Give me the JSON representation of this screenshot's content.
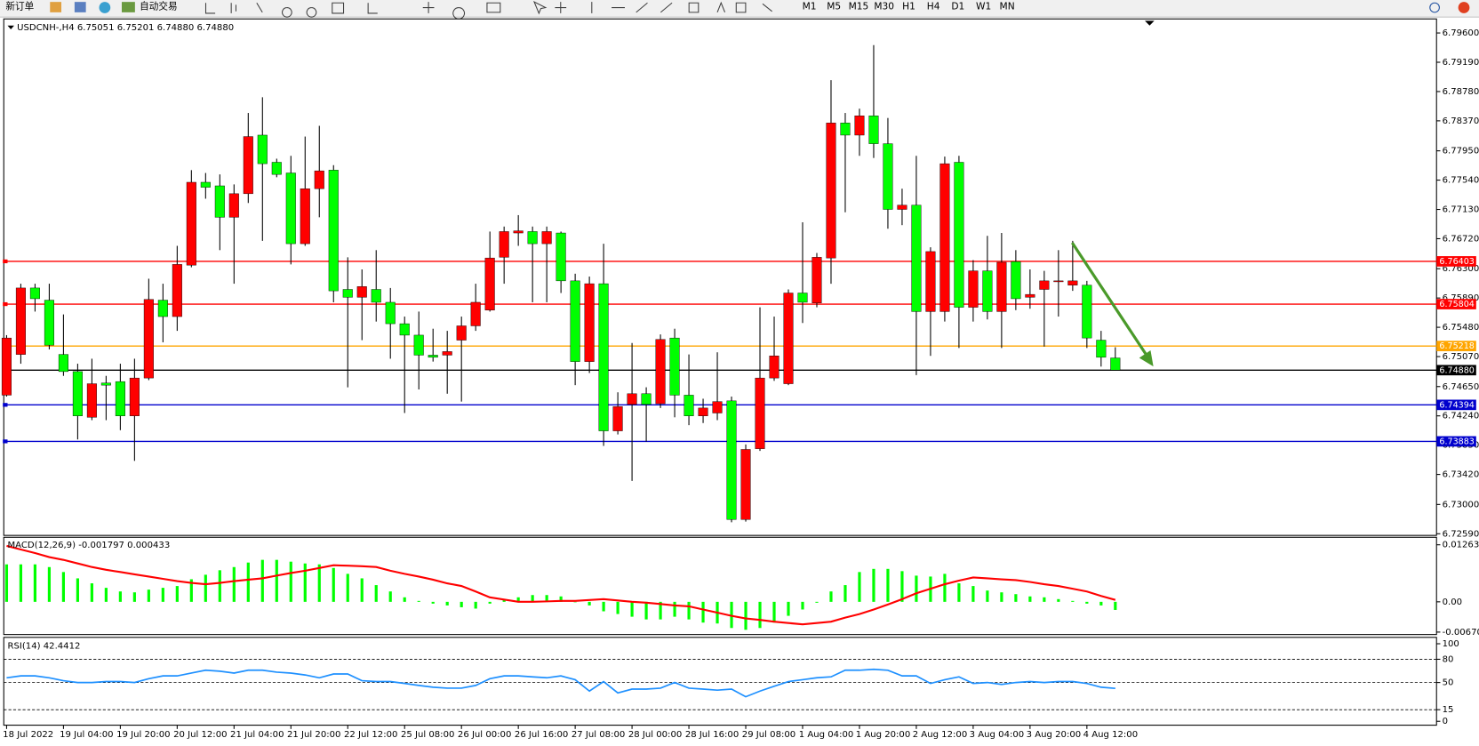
{
  "toolbar": {
    "new_order": "新订单",
    "auto_trade": "自动交易",
    "timeframes": [
      "M1",
      "M5",
      "M15",
      "M30",
      "H1",
      "H4",
      "D1",
      "W1",
      "MN"
    ]
  },
  "chart_data": [
    {
      "type": "candlestick",
      "title": "USDCNH-,H4 6.75051 6.75201 6.74880 6.74880",
      "up_color": "#ff0000",
      "down_color": "#00ff00",
      "categories": [
        "18 Jul 2022",
        null,
        null,
        null,
        "19 Jul 04:00",
        null,
        null,
        null,
        "19 Jul 20:00",
        null,
        null,
        null,
        "20 Jul 12:00",
        null,
        null,
        null,
        "21 Jul 04:00",
        null,
        null,
        null,
        "21 Jul 20:00",
        null,
        null,
        null,
        "22 Jul 12:00",
        null,
        null,
        null,
        "25 Jul 08:00",
        null,
        null,
        null,
        "26 Jul 00:00",
        null,
        null,
        null,
        "26 Jul 16:00",
        null,
        null,
        null,
        "27 Jul 08:00",
        null,
        null,
        null,
        "28 Jul 00:00",
        null,
        null,
        null,
        "28 Jul 16:00",
        null,
        null,
        null,
        "29 Jul 08:00",
        null,
        null,
        null,
        "1 Aug 04:00",
        null,
        null,
        null,
        "1 Aug 20:00",
        null,
        null,
        null,
        "2 Aug 12:00",
        null,
        null,
        null,
        "3 Aug 04:00",
        null,
        null,
        null,
        "3 Aug 20:00",
        null,
        null,
        null,
        "4 Aug 12:00",
        null,
        null
      ],
      "open": [
        6.7453,
        6.751,
        6.7603,
        6.7586,
        6.751,
        6.7486,
        6.7422,
        6.747,
        6.7472,
        6.7424,
        6.7477,
        6.7586,
        6.7563,
        6.7635,
        6.7751,
        6.7746,
        6.7702,
        6.7735,
        6.7817,
        6.7779,
        6.7764,
        6.7665,
        6.7742,
        6.7768,
        6.7601,
        6.759,
        6.7601,
        6.7583,
        6.7553,
        6.7537,
        6.7509,
        6.7509,
        6.753,
        6.755,
        6.7572,
        6.7646,
        6.768,
        6.7682,
        6.7665,
        6.768,
        6.7613,
        6.75,
        6.7609,
        6.7403,
        6.744,
        6.7455,
        6.7441,
        6.7533,
        6.7453,
        6.7424,
        6.7428,
        6.7445,
        6.7279,
        6.7378,
        6.7477,
        6.7469,
        6.7596,
        6.7582,
        6.7645,
        6.7834,
        6.7817,
        6.7844,
        6.7805,
        6.7713,
        6.7719,
        6.757,
        6.757,
        6.7779,
        6.7576,
        6.7627,
        6.757,
        6.764,
        6.759,
        6.7601,
        6.7612,
        6.7607,
        6.7607,
        6.753,
        6.75051
      ],
      "high": [
        6.7537,
        6.7609,
        6.7609,
        6.7609,
        6.7566,
        6.7497,
        6.7504,
        6.748,
        6.7497,
        6.7504,
        6.7616,
        6.7609,
        6.7662,
        6.7768,
        6.7764,
        6.7762,
        6.7748,
        6.7848,
        6.787,
        6.7784,
        6.7788,
        6.7815,
        6.783,
        6.7775,
        6.7646,
        6.7629,
        6.7656,
        6.7603,
        6.7563,
        6.757,
        6.7546,
        6.7543,
        6.7563,
        6.7609,
        6.7682,
        6.7689,
        6.7705,
        6.7689,
        6.7689,
        6.7682,
        6.7623,
        6.7619,
        6.7665,
        6.7457,
        6.7526,
        6.7464,
        6.7538,
        6.7546,
        6.751,
        6.7448,
        6.7513,
        6.7451,
        6.7384,
        6.7576,
        6.7563,
        6.7601,
        6.7695,
        6.7652,
        6.7894,
        6.7848,
        6.7854,
        6.7943,
        6.7841,
        6.7742,
        6.7788,
        6.766,
        6.7787,
        6.7788,
        6.7642,
        6.7676,
        6.768,
        6.7656,
        6.7629,
        6.7627,
        6.7656,
        6.7669,
        6.7613,
        6.7543,
        6.75201
      ],
      "low": [
        6.7451,
        6.7497,
        6.757,
        6.7517,
        6.748,
        6.7391,
        6.7418,
        6.7418,
        6.7404,
        6.7361,
        6.7474,
        6.7527,
        6.7543,
        6.7632,
        6.7728,
        6.7656,
        6.7609,
        6.7722,
        6.7669,
        6.7758,
        6.7636,
        6.7662,
        6.7702,
        6.7583,
        6.7464,
        6.753,
        6.7556,
        6.7504,
        6.7428,
        6.7461,
        6.75,
        6.7455,
        6.7444,
        6.7543,
        6.757,
        6.7609,
        6.7662,
        6.7583,
        6.7583,
        6.7596,
        6.7467,
        6.7484,
        6.7382,
        6.7398,
        6.7333,
        6.7388,
        6.7435,
        6.7422,
        6.7411,
        6.7414,
        6.7418,
        6.7275,
        6.7276,
        6.7375,
        6.7473,
        6.7467,
        6.7554,
        6.7576,
        6.7609,
        6.7709,
        6.7788,
        6.7785,
        6.7686,
        6.7691,
        6.7481,
        6.7508,
        6.7556,
        6.7519,
        6.7556,
        6.7559,
        6.7519,
        6.7572,
        6.7574,
        6.7521,
        6.7563,
        6.7599,
        6.7519,
        6.7493,
        6.7488
      ],
      "close": [
        6.7533,
        6.7603,
        6.7588,
        6.7523,
        6.7486,
        6.7424,
        6.7469,
        6.7467,
        6.7424,
        6.7477,
        6.7587,
        6.7563,
        6.7636,
        6.7751,
        6.7744,
        6.7702,
        6.7735,
        6.7815,
        6.7777,
        6.7762,
        6.7665,
        6.7742,
        6.7767,
        6.7599,
        6.759,
        6.7605,
        6.7583,
        6.7553,
        6.7537,
        6.7509,
        6.7506,
        6.7514,
        6.755,
        6.7583,
        6.7645,
        6.7682,
        6.7683,
        6.7665,
        6.7682,
        6.7613,
        6.75,
        6.7609,
        6.7403,
        6.7437,
        6.7455,
        6.744,
        6.7531,
        6.7453,
        6.7424,
        6.7435,
        6.7444,
        6.7279,
        6.7377,
        6.7477,
        6.7508,
        6.7596,
        6.7583,
        6.7646,
        6.7834,
        6.7817,
        6.7844,
        6.7805,
        6.7713,
        6.7719,
        6.757,
        6.7654,
        6.7777,
        6.7576,
        6.7627,
        6.757,
        6.7639,
        6.7588,
        6.7594,
        6.7613,
        6.7613,
        6.7613,
        6.7533,
        6.7506,
        6.7488
      ],
      "ylim": [
        6.7258,
        6.7977
      ],
      "yticks": [
        {
          "value": 6.796,
          "label": "6.79600"
        },
        {
          "value": 6.7919,
          "label": "6.79190"
        },
        {
          "value": 6.7878,
          "label": "6.78780"
        },
        {
          "value": 6.7837,
          "label": "6.78370"
        },
        {
          "value": 6.7795,
          "label": "6.77950"
        },
        {
          "value": 6.7754,
          "label": "6.77540"
        },
        {
          "value": 6.7713,
          "label": "6.77130"
        },
        {
          "value": 6.7672,
          "label": "6.76720"
        },
        {
          "value": 6.763,
          "label": "6.76300"
        },
        {
          "value": 6.7589,
          "label": "6.75890"
        },
        {
          "value": 6.7548,
          "label": "6.75480"
        },
        {
          "value": 6.7507,
          "label": "6.75070"
        },
        {
          "value": 6.7465,
          "label": "6.74650"
        },
        {
          "value": 6.7424,
          "label": "6.74240"
        },
        {
          "value": 6.7383,
          "label": "6.73830"
        },
        {
          "value": 6.7342,
          "label": "6.73420"
        },
        {
          "value": 6.73,
          "label": "6.73000"
        },
        {
          "value": 6.7259,
          "label": "6.72590"
        }
      ],
      "levels": [
        {
          "value": 6.76403,
          "label": "6.76403",
          "color": "#ff0000"
        },
        {
          "value": 6.75804,
          "label": "6.75804",
          "color": "#ff0000"
        },
        {
          "value": 6.75218,
          "label": "6.75218",
          "color": "#ffa500"
        },
        {
          "value": 6.7488,
          "label": "6.74880",
          "color": "#000000"
        },
        {
          "value": 6.74394,
          "label": "6.74394",
          "color": "#0000cd"
        },
        {
          "value": 6.73883,
          "label": "6.73883",
          "color": "#0000cd"
        }
      ]
    },
    {
      "type": "macd",
      "title": "MACD(12,26,9) -0.001797 0.000433",
      "histogram": {
        "color": "#00ff00",
        "values": [
          0.0083,
          0.0083,
          0.0083,
          0.0077,
          0.0066,
          0.0052,
          0.0041,
          0.0031,
          0.0023,
          0.0021,
          0.0027,
          0.0031,
          0.0035,
          0.005,
          0.006,
          0.007,
          0.0077,
          0.0087,
          0.0093,
          0.0093,
          0.0089,
          0.0085,
          0.0083,
          0.0075,
          0.0062,
          0.0052,
          0.0037,
          0.0023,
          0.001,
          0.0002,
          -0.0004,
          -0.0008,
          -0.0012,
          -0.0015,
          -0.0004,
          0.0004,
          0.001,
          0.0015,
          0.0015,
          0.0012,
          -0.0001,
          -0.0008,
          -0.0021,
          -0.0027,
          -0.0033,
          -0.0039,
          -0.0039,
          -0.0033,
          -0.0039,
          -0.0046,
          -0.0048,
          -0.0058,
          -0.0062,
          -0.0058,
          -0.0046,
          -0.0031,
          -0.0017,
          -0.0002,
          0.0023,
          0.0037,
          0.0066,
          0.0073,
          0.0073,
          0.0068,
          0.0058,
          0.0056,
          0.0062,
          0.0041,
          0.0035,
          0.0025,
          0.0021,
          0.0017,
          0.0012,
          0.001,
          0.0006,
          0.0002,
          -0.0004,
          -0.0008,
          -0.001797
        ]
      },
      "signal": {
        "color": "#ff0000",
        "values": [
          0.0124,
          0.0116,
          0.0108,
          0.0099,
          0.0093,
          0.0085,
          0.0077,
          0.0071,
          0.0066,
          0.0061,
          0.0056,
          0.0051,
          0.0046,
          0.0042,
          0.0039,
          0.0042,
          0.0046,
          0.0049,
          0.0052,
          0.0058,
          0.0064,
          0.0069,
          0.0075,
          0.0081,
          0.008,
          0.0079,
          0.0077,
          0.0069,
          0.0062,
          0.0056,
          0.0049,
          0.0041,
          0.0035,
          0.0023,
          0.001,
          0.0005,
          0.0,
          0.0,
          0.0001,
          0.0002,
          0.0002,
          0.0004,
          0.0006,
          0.0003,
          0.0,
          -0.0002,
          -0.0005,
          -0.0008,
          -0.001,
          -0.0017,
          -0.0024,
          -0.0031,
          -0.0037,
          -0.004,
          -0.0044,
          -0.0047,
          -0.005,
          -0.0047,
          -0.0044,
          -0.0035,
          -0.0027,
          -0.0017,
          -0.0006,
          0.0006,
          0.0019,
          0.0029,
          0.0039,
          0.0047,
          0.0054,
          0.0052,
          0.005,
          0.0048,
          0.0044,
          0.0039,
          0.0035,
          0.0029,
          0.0023,
          0.0013,
          0.000433
        ]
      },
      "ylim": [
        -0.00725,
        0.0143
      ],
      "yticks": [
        0.012637,
        {
          "value": 0,
          "label": "0.00"
        },
        -0.006709
      ]
    },
    {
      "type": "line",
      "title": "RSI(14) 42.4412",
      "color": "#1e90ff",
      "values": [
        56.1,
        58.5,
        58.5,
        56.1,
        52.4,
        50.0,
        50.0,
        51.2,
        51.2,
        50.0,
        54.9,
        58.5,
        58.5,
        62.2,
        65.9,
        64.6,
        62.2,
        65.9,
        65.9,
        63.4,
        62.2,
        59.8,
        56.1,
        61.0,
        61.0,
        52.4,
        51.2,
        51.2,
        48.8,
        46.3,
        43.9,
        42.7,
        42.7,
        46.3,
        54.9,
        58.5,
        58.5,
        57.3,
        56.1,
        58.5,
        53.7,
        39.0,
        51.2,
        36.6,
        41.5,
        41.5,
        42.7,
        50.0,
        42.7,
        41.5,
        40.2,
        41.5,
        31.7,
        39.0,
        45.1,
        51.2,
        53.7,
        56.1,
        57.3,
        65.9,
        65.9,
        67.1,
        65.9,
        58.5,
        58.5,
        48.8,
        53.7,
        57.3,
        48.8,
        50.0,
        47.6,
        50.0,
        51.2,
        50.0,
        51.2,
        51.2,
        48.8,
        43.9,
        42.4412
      ],
      "ylim": [
        -5,
        107
      ],
      "yticks": [
        100,
        80,
        50,
        15,
        0
      ],
      "levels": [
        80,
        50,
        15
      ]
    }
  ]
}
